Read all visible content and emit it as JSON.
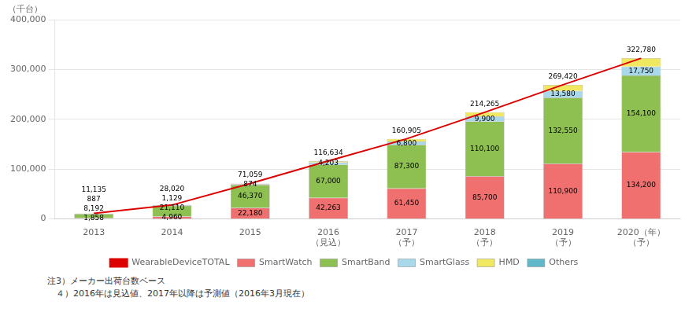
{
  "chart_data": {
    "type": "bar",
    "stacked": true,
    "ylabel": "（千台）",
    "categories": [
      "2013",
      "2014",
      "2015",
      "2016\n（見込）",
      "2017\n（予）",
      "2018\n（予）",
      "2019\n（予）",
      "2020（年）\n（予）"
    ],
    "series": [
      {
        "name": "SmartWatch",
        "color": "#f07070",
        "data_labels": true,
        "values": [
          1858,
          4960,
          22180,
          42263,
          61450,
          85700,
          110900,
          134200
        ],
        "value_labels": [
          "1,858",
          "4,960",
          "22,180",
          "42,263",
          "61,450",
          "85,700",
          "110,900",
          "134,200"
        ]
      },
      {
        "name": "SmartBand",
        "color": "#8dc050",
        "data_labels": true,
        "values": [
          8192,
          21110,
          46370,
          67000,
          87300,
          110100,
          132550,
          154100
        ],
        "value_labels": [
          "8,192",
          "21,110",
          "46,370",
          "67,000",
          "87,300",
          "110,100",
          "132,550",
          "154,100"
        ]
      },
      {
        "name": "SmartGlass",
        "color": "#a8d8ea",
        "data_labels": true,
        "values": [
          887,
          1129,
          874,
          4203,
          6800,
          9900,
          13580,
          17750
        ],
        "value_labels": [
          "887",
          "1,129",
          "874",
          "4,203",
          "6,800",
          "9,900",
          "13,580",
          "17,750"
        ]
      },
      {
        "name": "HMD",
        "color": "#f0e860",
        "values": [
          198,
          711,
          1235,
          2168,
          5355,
          8565,
          12390,
          16730
        ]
      },
      {
        "name": "Others",
        "color": "#60b8c8",
        "values": [
          0,
          110,
          400,
          1000,
          0,
          0,
          0,
          0
        ]
      },
      {
        "name": "WearableDeviceTOTAL",
        "type": "line",
        "color": "#dd0000",
        "data_labels": true,
        "values": [
          11135,
          28020,
          71059,
          116634,
          160905,
          214265,
          269420,
          322780
        ],
        "value_labels": [
          "11,135",
          "28,020",
          "71,059",
          "116,634",
          "160,905",
          "214,265",
          "269,420",
          "322,780"
        ]
      }
    ],
    "ylim": [
      0,
      400000
    ],
    "yticks": [
      {
        "value": 0,
        "label": "0"
      },
      {
        "value": 100000,
        "label": "100,000"
      },
      {
        "value": 200000,
        "label": "200,000"
      },
      {
        "value": 300000,
        "label": "300,000"
      },
      {
        "value": 400000,
        "label": "400,000"
      }
    ],
    "grid": true,
    "legend": "bottom",
    "annotations": [
      "注3）メーカー出荷台数ベース",
      "　４）2016年は見込値、2017年以降は予測値（2016年3月現在）"
    ]
  }
}
